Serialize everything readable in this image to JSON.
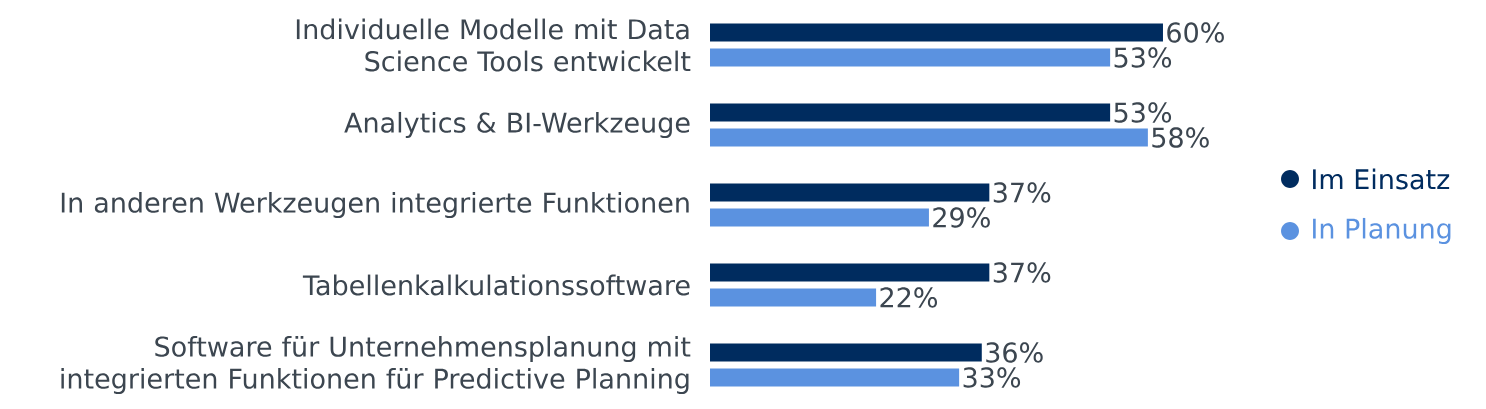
{
  "chart_data": {
    "type": "bar",
    "orientation": "horizontal",
    "categories": [
      "Individuelle Modelle mit Data Science Tools entwickelt",
      "Analytics & BI-Werkzeuge",
      "In anderen Werkzeugen integrierte Funktionen",
      "Tabellenkalkulationssoftware",
      "Software für Unternehmensplanung mit integrierten Funktionen für Predictive Planning"
    ],
    "series": [
      {
        "name": "Im Einsatz",
        "color": "#002c5f",
        "values": [
          60,
          53,
          37,
          37,
          36
        ],
        "value_labels": [
          "60%",
          "53%",
          "37%",
          "37%",
          "36%"
        ]
      },
      {
        "name": "In Planung",
        "color": "#5b92e0",
        "values": [
          53,
          58,
          29,
          22,
          33
        ],
        "value_labels": [
          "53%",
          "58%",
          "29%",
          "22%",
          "33%"
        ]
      }
    ],
    "legend": "right"
  }
}
